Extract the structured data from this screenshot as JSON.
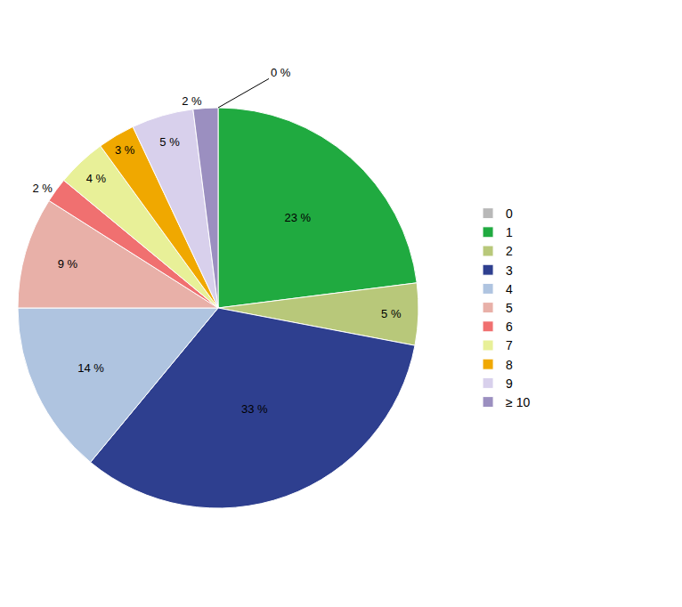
{
  "chart_data": {
    "type": "pie",
    "categories": [
      "0",
      "1",
      "2",
      "3",
      "4",
      "5",
      "6",
      "7",
      "8",
      "9",
      "≥ 10"
    ],
    "values": [
      0,
      23,
      5,
      33,
      14,
      9,
      2,
      4,
      3,
      5,
      2
    ],
    "value_labels": [
      "0 %",
      "23 %",
      "5 %",
      "33 %",
      "14 %",
      "9 %",
      "2 %",
      "4 %",
      "3 %",
      "5 %",
      "2 %"
    ],
    "colors": [
      "#b8b8b8",
      "#20aa40",
      "#b8c87a",
      "#2e3f8f",
      "#afc4e0",
      "#e8b0a8",
      "#f07070",
      "#e8f098",
      "#f0a800",
      "#d8d0ec",
      "#9b8fc0"
    ],
    "data_labels": true,
    "legend": "right"
  }
}
